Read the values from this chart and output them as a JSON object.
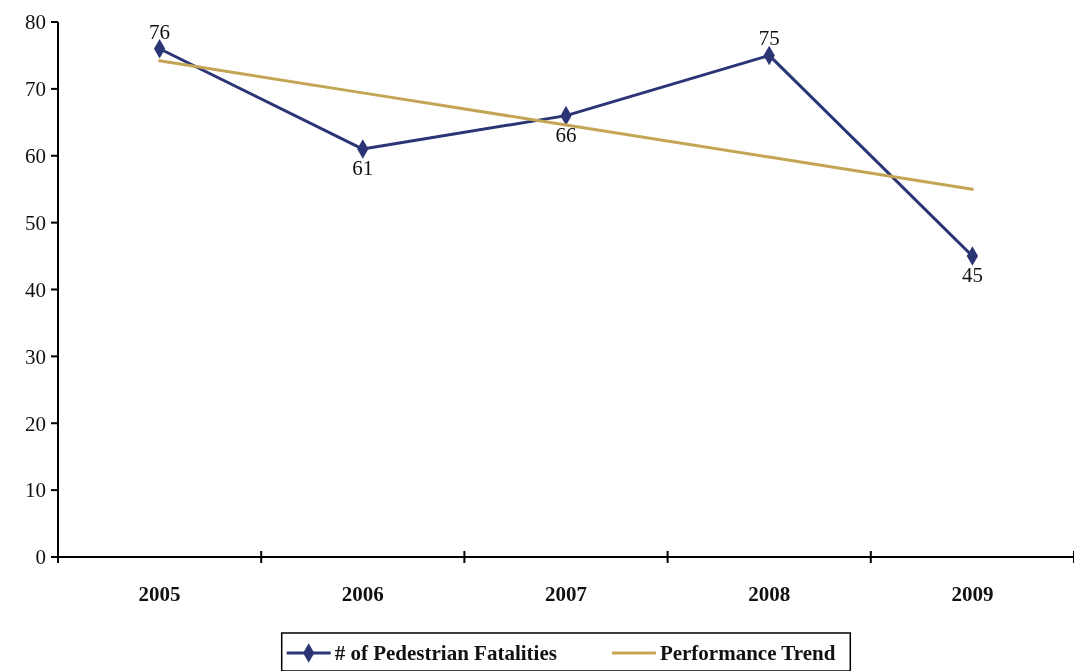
{
  "chart_data": {
    "type": "line",
    "categories": [
      "2005",
      "2006",
      "2007",
      "2008",
      "2009"
    ],
    "series": [
      {
        "name": "# of Pedestrian Fatalities",
        "color": "#2b3576",
        "values": [
          76,
          61,
          66,
          75,
          45
        ],
        "marker": "diamond",
        "value_labels": [
          "76",
          "61",
          "66",
          "75",
          "45"
        ]
      },
      {
        "name": "Performance Trend",
        "color": "#c4a556",
        "values": [
          74.2,
          69.4,
          64.6,
          59.8,
          55.0
        ],
        "marker": "none"
      }
    ],
    "ylim": [
      0,
      80
    ],
    "yticks": [
      0,
      10,
      20,
      30,
      40,
      50,
      60,
      70,
      80
    ],
    "grid": false,
    "legend": "bottom"
  }
}
